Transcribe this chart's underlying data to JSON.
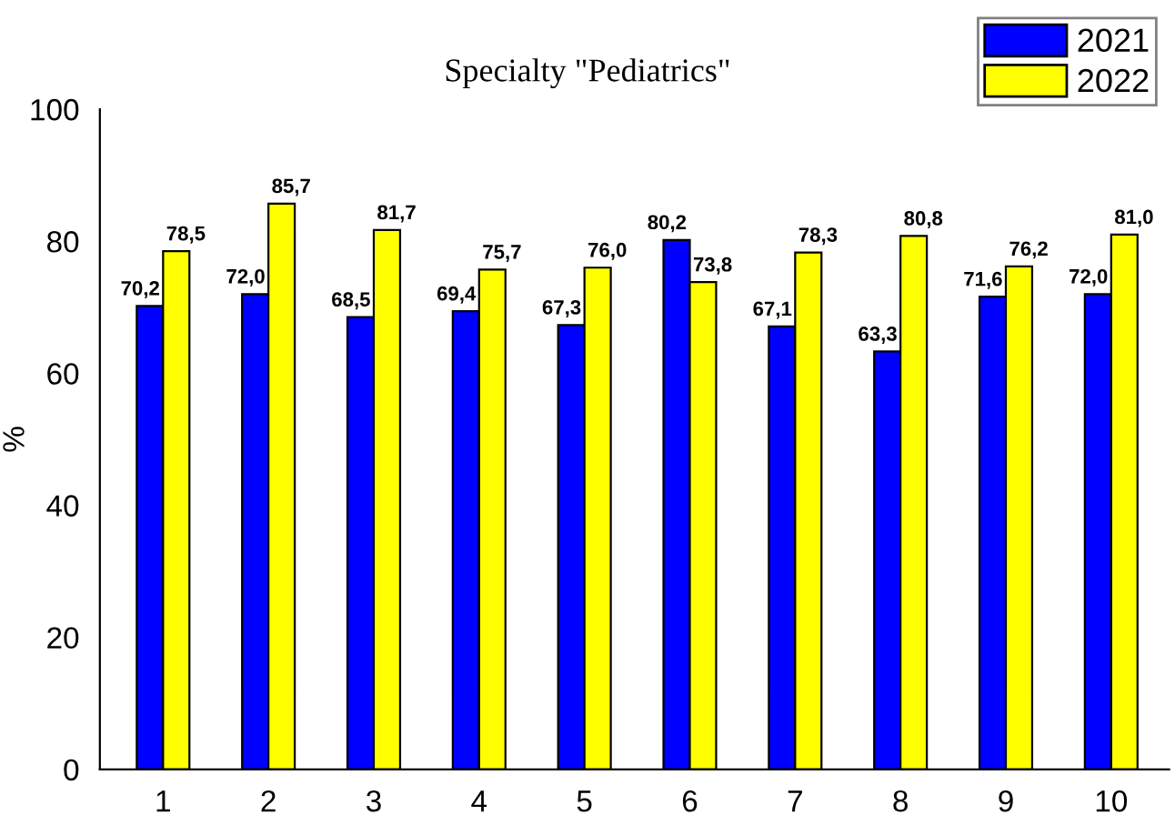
{
  "chart_data": {
    "type": "bar",
    "title": "Specialty \"Pediatrics\"",
    "ylabel": "%",
    "categories": [
      "1",
      "2",
      "3",
      "4",
      "5",
      "6",
      "7",
      "8",
      "9",
      "10"
    ],
    "series": [
      {
        "name": "2021",
        "color": "#0000ff",
        "values": [
          70.2,
          72.0,
          68.5,
          69.4,
          67.3,
          80.2,
          67.1,
          63.3,
          71.6,
          72.0
        ],
        "value_labels": [
          "70,2",
          "72,0",
          "68,5",
          "69,4",
          "67,3",
          "80,2",
          "67,1",
          "63,3",
          "71,6",
          "72,0"
        ]
      },
      {
        "name": "2022",
        "color": "#ffff00",
        "values": [
          78.5,
          85.7,
          81.7,
          75.7,
          76.0,
          73.8,
          78.3,
          80.8,
          76.2,
          81.0
        ],
        "value_labels": [
          "78,5",
          "85,7",
          "81,7",
          "75,7",
          "76,0",
          "73,8",
          "78,3",
          "80,8",
          "76,2",
          "81,0"
        ]
      }
    ],
    "ylim": [
      0,
      100
    ],
    "yticks": [
      0,
      20,
      40,
      60,
      80,
      100
    ],
    "grid": false,
    "legend": "top right"
  }
}
